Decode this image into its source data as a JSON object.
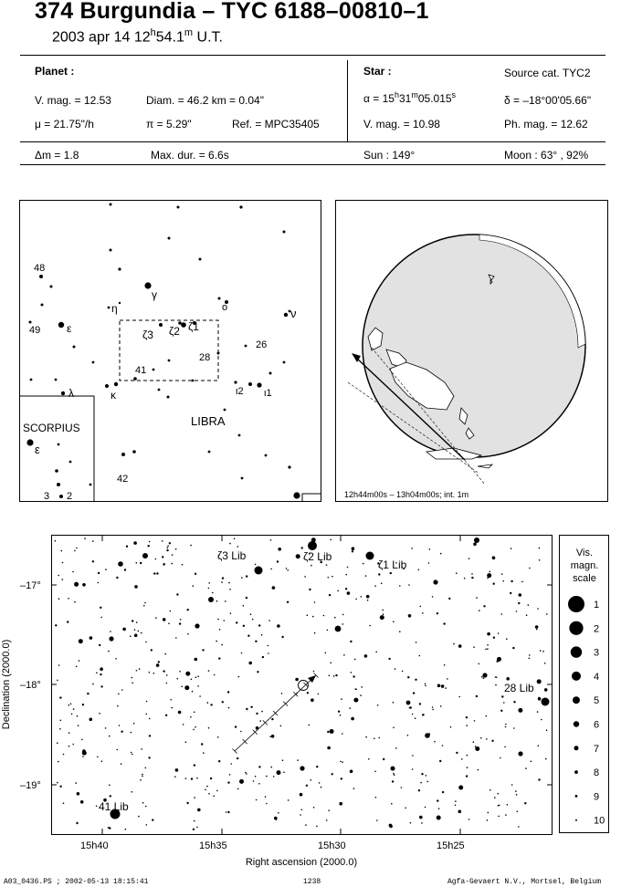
{
  "title": "374 Burgundia  –  TYC 6188–00810–1",
  "subtitle": {
    "prefix": "2003 apr 14  12",
    "hour_sup": "h",
    "mid": "54.1",
    "min_sup": "m",
    "suffix": " U.T."
  },
  "planet": {
    "heading": "Planet :",
    "vmag": "V. mag. = 12.53",
    "diam": "Diam. = 46.2 km = 0.04\"",
    "mu": "μ = 21.75\"/h",
    "pi": "π =  5.29\"",
    "ref": "Ref. = MPC35405",
    "dm": "Δm = 1.8",
    "maxdur": "Max. dur. = 6.6s"
  },
  "star": {
    "heading": "Star :",
    "source": "Source cat.  TYC2",
    "alpha_prefix": "α = 15",
    "alpha_h": "h",
    "alpha_mid": "31",
    "alpha_m": "m",
    "alpha_sec": "05.015",
    "alpha_s": "s",
    "delta": "δ = –18°00'05.66\"",
    "vmag": "V. mag. = 10.98",
    "phmag": "Ph. mag. = 12.62",
    "sun": "Sun : 149°",
    "moon": "Moon :  63° , 92%"
  },
  "finder": {
    "constellation_libra": "LIBRA",
    "constellation_scorpius": "SCORPIUS",
    "labels": {
      "n48": "48",
      "n49": "49",
      "eta": "η",
      "gamma": "γ",
      "omicron": "o",
      "nu": "ν",
      "epsilon": "ε",
      "zeta3": "ζ3",
      "zeta2": "ζ2",
      "zeta1": "ζ1",
      "n26": "26",
      "n28": "28",
      "n41": "41",
      "kappa": "κ",
      "lambda": "λ",
      "iota2": "ι2",
      "iota1": "ι1",
      "eps_sco": "ε",
      "n42": "42",
      "n3": "3",
      "n2": "2"
    }
  },
  "globe": {
    "caption": "12h44m00s – 13h04m00s; int.  1m"
  },
  "chart": {
    "ylabel": "Declination (2000.0)",
    "xlabel": "Right ascension (2000.0)",
    "yticks": [
      "–17°",
      "–18°",
      "–19°"
    ],
    "xticks": [
      "15h40",
      "15h35",
      "15h30",
      "15h25"
    ],
    "star_labels": {
      "zeta3": "ζ3 Lib",
      "zeta2": "ζ2 Lib",
      "zeta1": "ζ1 Lib",
      "lib28": "28 Lib",
      "lib41": "41 Lib"
    }
  },
  "scale": {
    "title": [
      "Vis.",
      "magn.",
      "scale"
    ],
    "mags": [
      "1",
      "2",
      "3",
      "4",
      "5",
      "6",
      "7",
      "8",
      "9",
      "10"
    ]
  },
  "footer": {
    "left": "A03_0436.PS ; 2002-05-13 18:15:41",
    "center": "1238",
    "right": "Agfa-Gevaert N.V., Mortsel, Belgium"
  }
}
